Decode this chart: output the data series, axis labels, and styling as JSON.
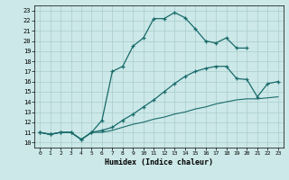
{
  "xlabel": "Humidex (Indice chaleur)",
  "xlim": [
    -0.5,
    23.5
  ],
  "ylim": [
    9.5,
    23.5
  ],
  "yticks": [
    10,
    11,
    12,
    13,
    14,
    15,
    16,
    17,
    18,
    19,
    20,
    21,
    22,
    23
  ],
  "xticks": [
    0,
    1,
    2,
    3,
    4,
    5,
    6,
    7,
    8,
    9,
    10,
    11,
    12,
    13,
    14,
    15,
    16,
    17,
    18,
    19,
    20,
    21,
    22,
    23
  ],
  "bg_color": "#cce8e8",
  "line_color": "#1a6b6b",
  "grid_color": "#aacccc",
  "lines": [
    {
      "x": [
        0,
        1,
        2,
        3,
        4,
        5,
        6,
        7,
        8,
        9,
        10,
        11,
        12,
        13,
        14,
        15,
        16,
        17,
        18,
        19,
        20
      ],
      "y": [
        11,
        10.8,
        11,
        11,
        10.3,
        11,
        12.2,
        17,
        17.5,
        19.5,
        20.3,
        22.2,
        22.2,
        22.8,
        22.3,
        21.2,
        20,
        19.8,
        20.3,
        19.3,
        19.3
      ],
      "marker": true
    },
    {
      "x": [
        0,
        1,
        2,
        3,
        4,
        5,
        6,
        7,
        8,
        9,
        10,
        11,
        12,
        13,
        14,
        15,
        16,
        17,
        18,
        19,
        20,
        21,
        22,
        23
      ],
      "y": [
        11,
        10.8,
        11,
        11,
        10.3,
        11,
        11.2,
        11.5,
        12.2,
        12.8,
        13.5,
        14.2,
        15.0,
        15.8,
        16.5,
        17.0,
        17.3,
        17.5,
        17.5,
        16.3,
        16.2,
        14.5,
        15.8,
        16.0
      ],
      "marker": true
    },
    {
      "x": [
        0,
        1,
        2,
        3,
        4,
        5,
        6,
        7,
        8,
        9,
        10,
        11,
        12,
        13,
        14,
        15,
        16,
        17,
        18,
        19,
        20,
        21,
        22,
        23
      ],
      "y": [
        11,
        10.8,
        11,
        11,
        10.3,
        11,
        11.0,
        11.2,
        11.5,
        11.8,
        12.0,
        12.3,
        12.5,
        12.8,
        13.0,
        13.3,
        13.5,
        13.8,
        14.0,
        14.2,
        14.3,
        14.3,
        14.4,
        14.5
      ],
      "marker": false
    }
  ]
}
